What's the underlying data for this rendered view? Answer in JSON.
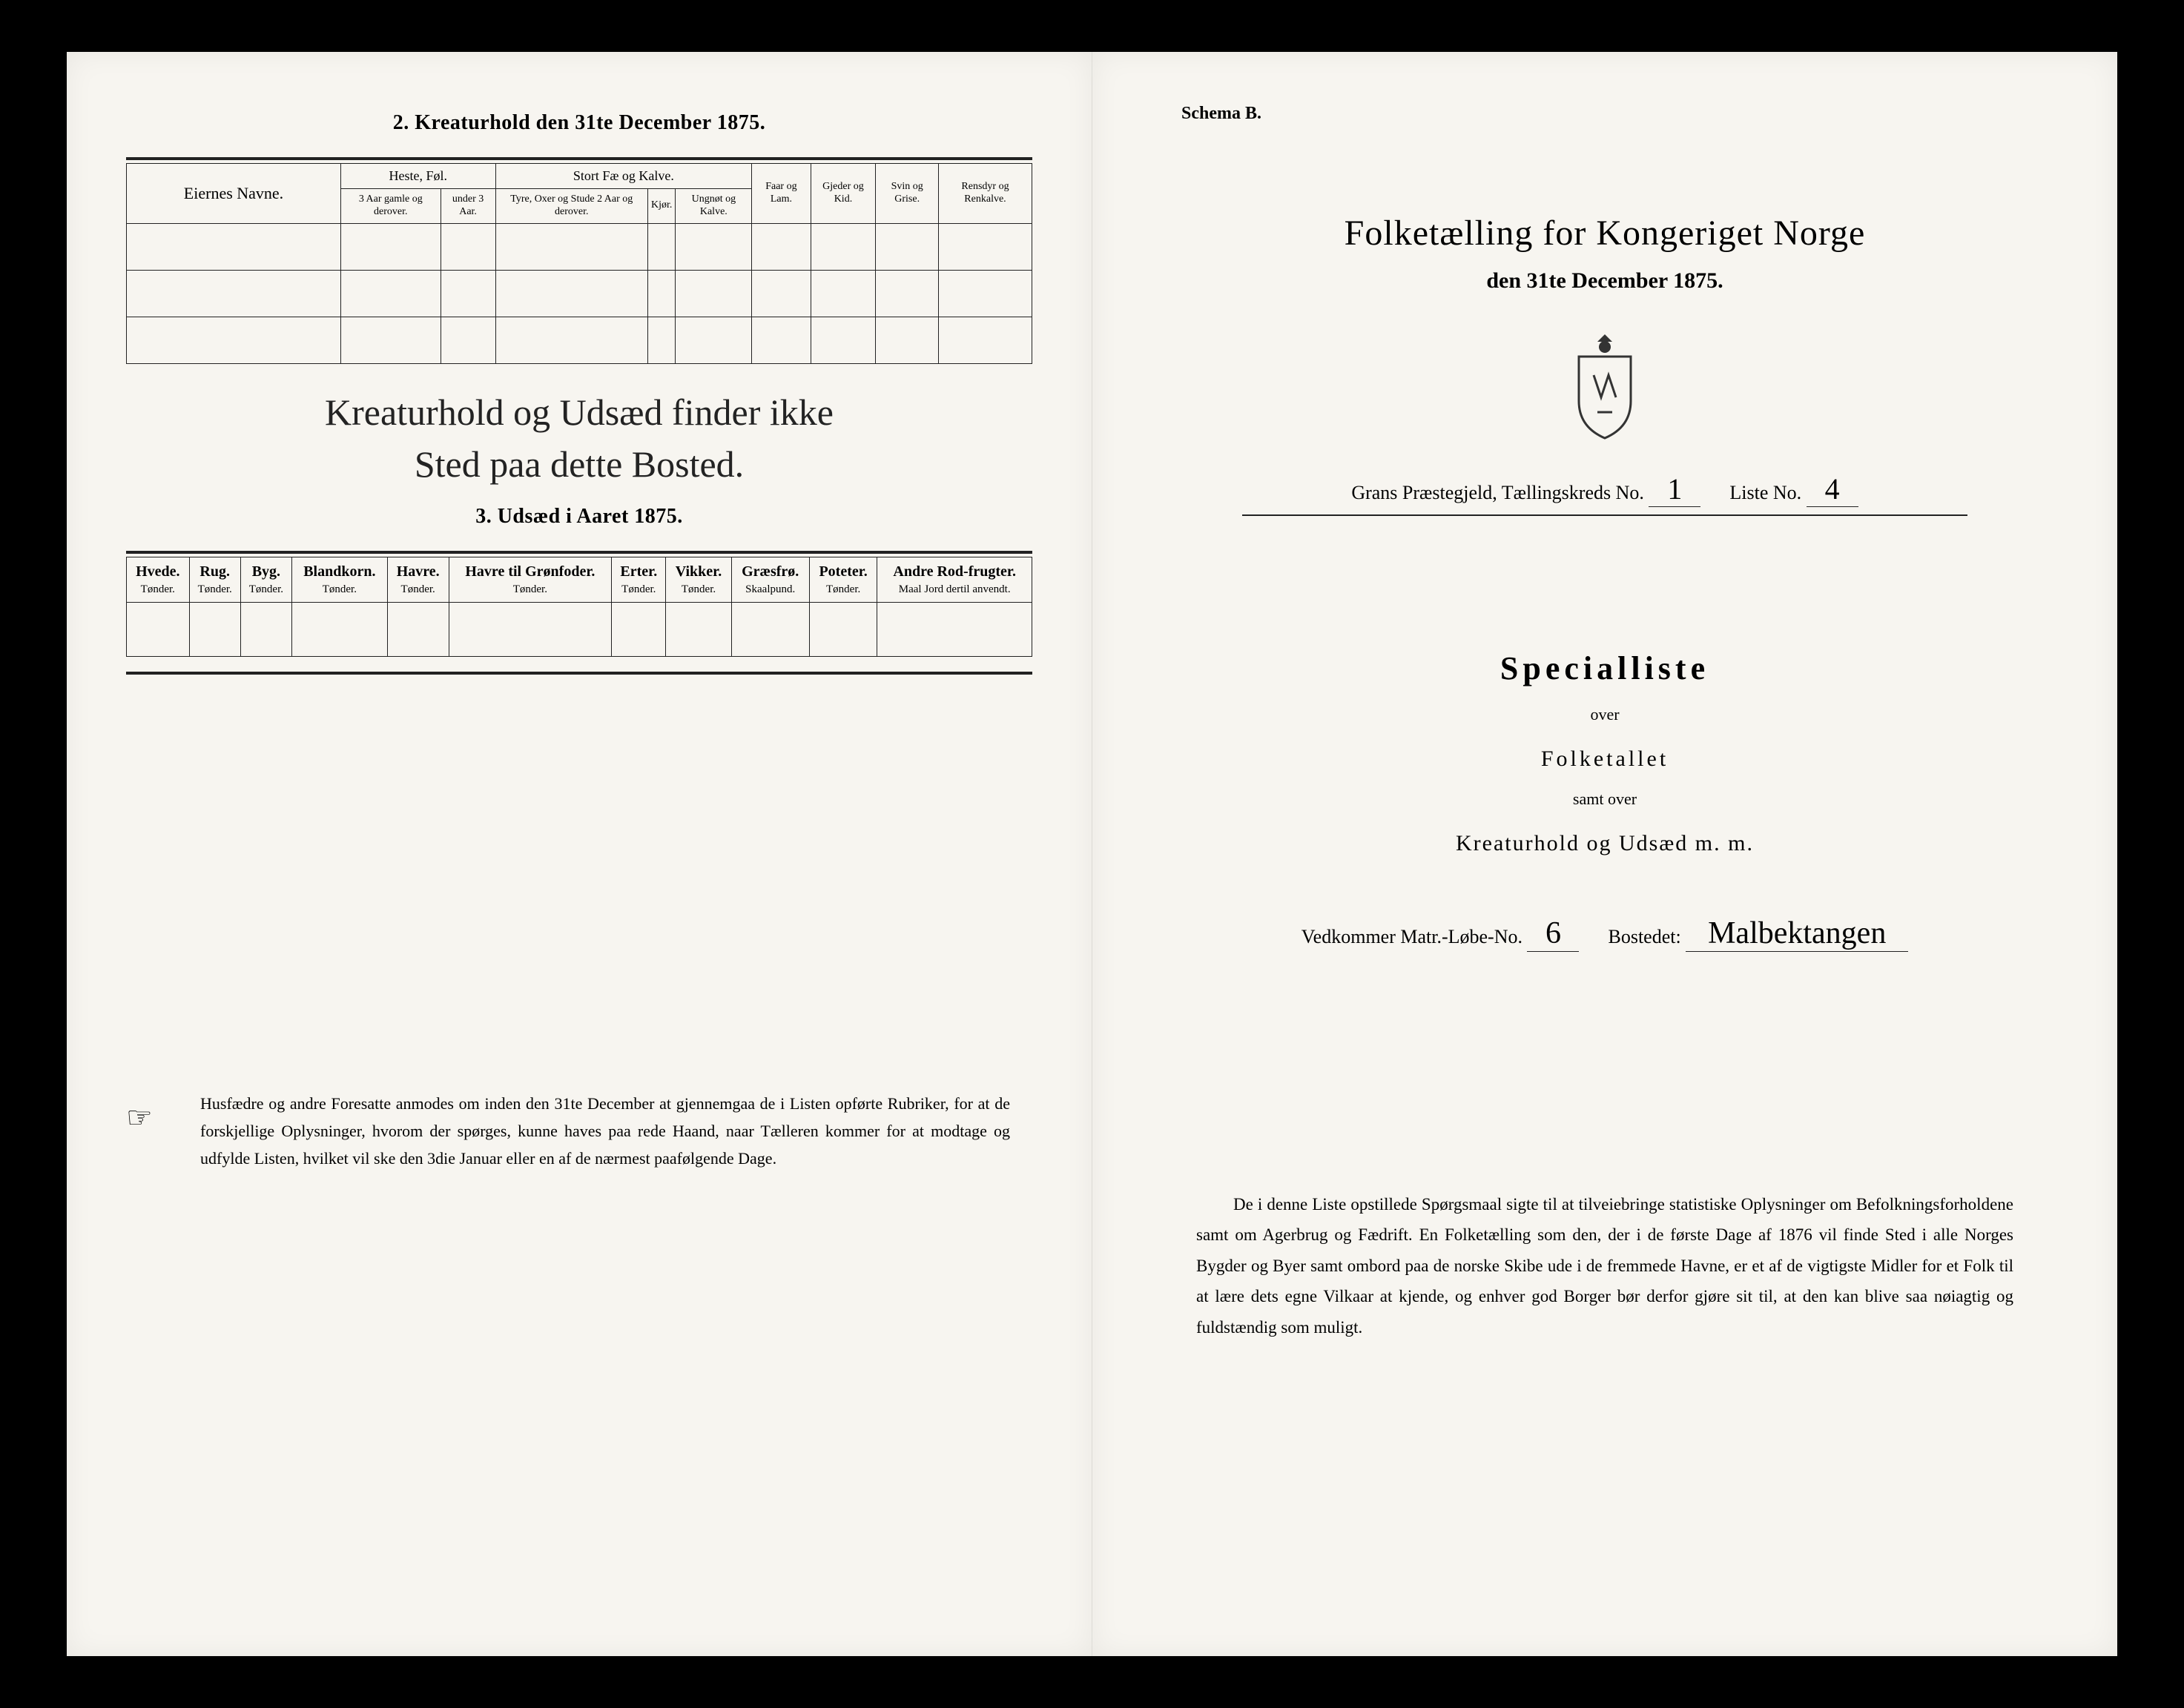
{
  "left": {
    "section2_title": "2. Kreaturhold den 31te December 1875.",
    "table2": {
      "eier": "Eiernes Navne.",
      "heste": "Heste, Føl.",
      "heste_sub1": "3 Aar gamle og derover.",
      "heste_sub2": "under 3 Aar.",
      "storfae": "Stort Fæ og Kalve.",
      "storfae_sub1": "Tyre, Oxer og Stude 2 Aar og derover.",
      "storfae_sub2": "Kjør.",
      "storfae_sub3": "Ungnøt og Kalve.",
      "faar": "Faar og Lam.",
      "gjeder": "Gjeder og Kid.",
      "svin": "Svin og Grise.",
      "rensdyr": "Rensdyr og Renkalve."
    },
    "handwriting_line1": "Kreaturhold og Udsæd finder ikke",
    "handwriting_line2": "Sted paa dette Bosted.",
    "section3_title": "3. Udsæd i Aaret 1875.",
    "table3": {
      "cols": [
        {
          "name": "Hvede.",
          "unit": "Tønder."
        },
        {
          "name": "Rug.",
          "unit": "Tønder."
        },
        {
          "name": "Byg.",
          "unit": "Tønder."
        },
        {
          "name": "Blandkorn.",
          "unit": "Tønder."
        },
        {
          "name": "Havre.",
          "unit": "Tønder."
        },
        {
          "name": "Havre til Grønfoder.",
          "unit": "Tønder."
        },
        {
          "name": "Erter.",
          "unit": "Tønder."
        },
        {
          "name": "Vikker.",
          "unit": "Tønder."
        },
        {
          "name": "Græsfrø.",
          "unit": "Skaalpund."
        },
        {
          "name": "Poteter.",
          "unit": "Tønder."
        },
        {
          "name": "Andre Rod-frugter.",
          "unit": "Maal Jord dertil anvendt."
        }
      ]
    },
    "footnote": "Husfædre og andre Foresatte anmodes om inden den 31te December at gjennemgaa de i Listen opførte Rubriker, for at de forskjellige Oplysninger, hvorom der spørges, kunne haves paa rede Haand, naar Tælleren kommer for at modtage og udfylde Listen, hvilket vil ske den 3die Januar eller en af de nærmest paafølgende Dage."
  },
  "right": {
    "schema": "Schema B.",
    "title": "Folketælling for Kongeriget Norge",
    "subtitle": "den 31te December 1875.",
    "praestegjeld_label": "Grans Præstegjeld, Tællingskreds No.",
    "kreds_no": "1",
    "liste_label": "Liste No.",
    "liste_no": "4",
    "special_title": "Specialliste",
    "over": "over",
    "folketallet": "Folketallet",
    "samt": "samt over",
    "kreatur": "Kreaturhold og Udsæd m. m.",
    "vedkommer_label": "Vedkommer Matr.-Løbe-No.",
    "matr_no": "6",
    "bostedet_label": "Bostedet:",
    "bostedet": "Malbektangen",
    "footnote": "De i denne Liste opstillede Spørgsmaal sigte til at tilveiebringe statistiske Oplysninger om Befolkningsforholdene samt om Agerbrug og Fædrift. En Folketælling som den, der i de første Dage af 1876 vil finde Sted i alle Norges Bygder og Byer samt ombord paa de norske Skibe ude i de fremmede Havne, er et af de vigtigste Midler for et Folk til at lære dets egne Vilkaar at kjende, og enhver god Borger bør derfor gjøre sit til, at den kan blive saa nøiagtig og fuldstændig som muligt."
  },
  "colors": {
    "bg": "#000000",
    "paper": "#f7f5f0",
    "ink": "#1a1a1a"
  }
}
